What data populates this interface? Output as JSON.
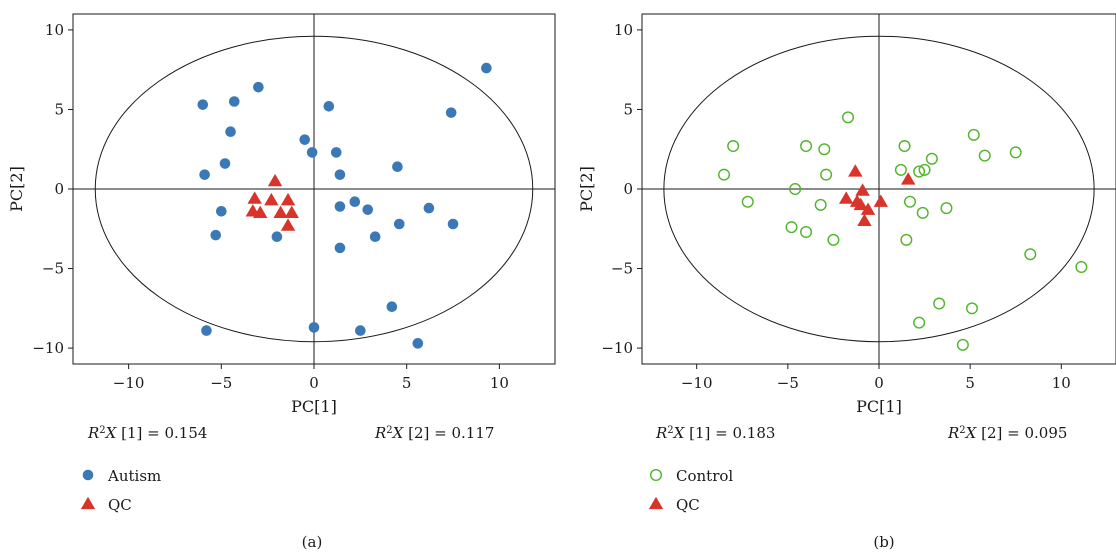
{
  "chart_data": [
    {
      "type": "scatter",
      "panel_label": "(a)",
      "xlabel": "PC[1]",
      "ylabel": "PC[2]",
      "xlim": [
        -13,
        13
      ],
      "ylim": [
        -11,
        11
      ],
      "xticks": [
        -10,
        -5,
        0,
        5,
        10
      ],
      "yticks": [
        -10,
        -5,
        0,
        5,
        10
      ],
      "xtick_labels": [
        "−10",
        "−5",
        "0",
        "5",
        "10"
      ],
      "ytick_labels": [
        "−10",
        "−5",
        "0",
        "5",
        "10"
      ],
      "ellipse": {
        "cx": 0,
        "cy": 0,
        "rx": 11.8,
        "ry": 9.6
      },
      "r2x": [
        {
          "prefix": "R",
          "sup": "2",
          "mid": "X [1] = ",
          "value": "0.154"
        },
        {
          "prefix": "R",
          "sup": "2",
          "mid": "X [2] = ",
          "value": "0.117"
        }
      ],
      "series": [
        {
          "name": "Autism",
          "marker": "circle-filled",
          "color": "#3a78b6",
          "points": [
            [
              9.3,
              7.6
            ],
            [
              -3.0,
              6.4
            ],
            [
              -6.0,
              5.3
            ],
            [
              -4.3,
              5.5
            ],
            [
              0.8,
              5.2
            ],
            [
              7.4,
              4.8
            ],
            [
              -4.5,
              3.6
            ],
            [
              -0.5,
              3.1
            ],
            [
              -0.1,
              2.3
            ],
            [
              1.2,
              2.3
            ],
            [
              -4.8,
              1.6
            ],
            [
              4.5,
              1.4
            ],
            [
              -5.9,
              0.9
            ],
            [
              1.4,
              0.9
            ],
            [
              -5.0,
              -1.4
            ],
            [
              1.4,
              -1.1
            ],
            [
              2.2,
              -0.8
            ],
            [
              2.9,
              -1.3
            ],
            [
              6.2,
              -1.2
            ],
            [
              7.5,
              -2.2
            ],
            [
              4.6,
              -2.2
            ],
            [
              -5.3,
              -2.9
            ],
            [
              -2.0,
              -3.0
            ],
            [
              3.3,
              -3.0
            ],
            [
              1.4,
              -3.7
            ],
            [
              4.2,
              -7.4
            ],
            [
              0.0,
              -8.7
            ],
            [
              2.5,
              -8.9
            ],
            [
              -5.8,
              -8.9
            ],
            [
              5.6,
              -9.7
            ]
          ]
        },
        {
          "name": "QC",
          "marker": "triangle-filled",
          "color": "#d9342b",
          "points": [
            [
              -2.1,
              0.5
            ],
            [
              -3.2,
              -0.6
            ],
            [
              -2.3,
              -0.7
            ],
            [
              -1.4,
              -0.7
            ],
            [
              -3.3,
              -1.4
            ],
            [
              -2.9,
              -1.5
            ],
            [
              -1.8,
              -1.5
            ],
            [
              -1.2,
              -1.5
            ],
            [
              -1.4,
              -2.3
            ]
          ]
        }
      ]
    },
    {
      "type": "scatter",
      "panel_label": "(b)",
      "xlabel": "PC[1]",
      "ylabel": "PC[2]",
      "xlim": [
        -13,
        13
      ],
      "ylim": [
        -11,
        11
      ],
      "xticks": [
        -10,
        -5,
        0,
        5,
        10
      ],
      "yticks": [
        -10,
        -5,
        0,
        5,
        10
      ],
      "xtick_labels": [
        "−10",
        "−5",
        "0",
        "5",
        "10"
      ],
      "ytick_labels": [
        "−10",
        "−5",
        "0",
        "5",
        "10"
      ],
      "ellipse": {
        "cx": 0,
        "cy": 0,
        "rx": 11.8,
        "ry": 9.6
      },
      "r2x": [
        {
          "prefix": "R",
          "sup": "2",
          "mid": "X [1] = ",
          "value": "0.183"
        },
        {
          "prefix": "R",
          "sup": "2",
          "mid": "X [2] = ",
          "value": "0.095"
        }
      ],
      "series": [
        {
          "name": "Control",
          "marker": "circle-open",
          "color": "#4fb427",
          "points": [
            [
              -1.7,
              4.5
            ],
            [
              5.2,
              3.4
            ],
            [
              -8.0,
              2.7
            ],
            [
              -4.0,
              2.7
            ],
            [
              -3.0,
              2.5
            ],
            [
              1.4,
              2.7
            ],
            [
              7.5,
              2.3
            ],
            [
              5.8,
              2.1
            ],
            [
              2.9,
              1.9
            ],
            [
              1.2,
              1.2
            ],
            [
              2.2,
              1.1
            ],
            [
              2.5,
              1.2
            ],
            [
              -8.5,
              0.9
            ],
            [
              -2.9,
              0.9
            ],
            [
              -4.6,
              0.0
            ],
            [
              -7.2,
              -0.8
            ],
            [
              1.7,
              -0.8
            ],
            [
              -3.2,
              -1.0
            ],
            [
              3.7,
              -1.2
            ],
            [
              2.4,
              -1.5
            ],
            [
              -4.8,
              -2.4
            ],
            [
              -4.0,
              -2.7
            ],
            [
              -2.5,
              -3.2
            ],
            [
              1.5,
              -3.2
            ],
            [
              8.3,
              -4.1
            ],
            [
              11.1,
              -4.9
            ],
            [
              3.3,
              -7.2
            ],
            [
              5.1,
              -7.5
            ],
            [
              2.2,
              -8.4
            ],
            [
              4.6,
              -9.8
            ]
          ]
        },
        {
          "name": "QC",
          "marker": "triangle-filled",
          "color": "#d9342b",
          "points": [
            [
              -1.3,
              1.1
            ],
            [
              1.6,
              0.6
            ],
            [
              -0.9,
              -0.1
            ],
            [
              -1.8,
              -0.6
            ],
            [
              -1.2,
              -0.8
            ],
            [
              0.1,
              -0.8
            ],
            [
              -1.0,
              -1.0
            ],
            [
              -0.6,
              -1.3
            ],
            [
              -0.8,
              -2.0
            ]
          ]
        }
      ]
    }
  ]
}
